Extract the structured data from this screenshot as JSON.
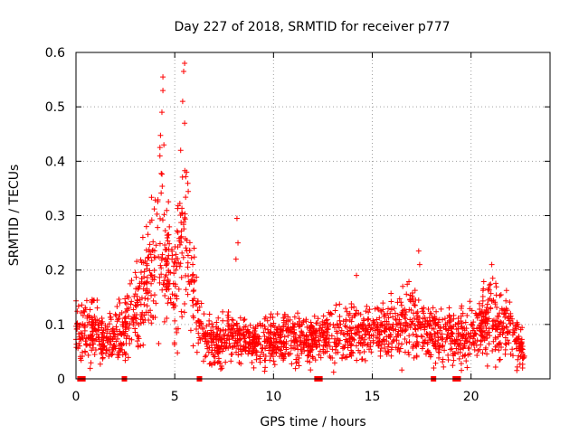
{
  "chart_data": {
    "type": "scatter",
    "title": "Day 227 of 2018, SRMTID for receiver p777",
    "xlabel": "GPS time / hours",
    "ylabel": "SRMTID / TECUs",
    "xlim": [
      0,
      24
    ],
    "ylim": [
      0,
      0.6
    ],
    "x_ticks": [
      0,
      5,
      10,
      15,
      20
    ],
    "y_ticks": [
      0,
      0.1,
      0.2,
      0.3,
      0.4,
      0.5,
      0.6
    ],
    "x_tick_labels": [
      "0",
      "5",
      "10",
      "15",
      "20"
    ],
    "y_tick_labels": [
      "0",
      "0.1",
      "0.2",
      "0.3",
      "0.4",
      "0.5",
      "0.6"
    ],
    "grid": true,
    "marker": "plus",
    "color": "#ff0000",
    "data_coverage": [
      0.0,
      22.7
    ],
    "series": [
      {
        "name": "SRMTID",
        "envelope": [
          {
            "x": 0.0,
            "y": 0.09
          },
          {
            "x": 0.5,
            "y": 0.1
          },
          {
            "x": 1.0,
            "y": 0.09
          },
          {
            "x": 1.5,
            "y": 0.07
          },
          {
            "x": 2.0,
            "y": 0.08
          },
          {
            "x": 2.5,
            "y": 0.09
          },
          {
            "x": 3.0,
            "y": 0.13
          },
          {
            "x": 3.5,
            "y": 0.17
          },
          {
            "x": 4.0,
            "y": 0.21
          },
          {
            "x": 4.3,
            "y": 0.27
          },
          {
            "x": 4.6,
            "y": 0.2
          },
          {
            "x": 5.0,
            "y": 0.17
          },
          {
            "x": 5.3,
            "y": 0.27
          },
          {
            "x": 5.7,
            "y": 0.2
          },
          {
            "x": 6.0,
            "y": 0.14
          },
          {
            "x": 6.5,
            "y": 0.08
          },
          {
            "x": 7.0,
            "y": 0.07
          },
          {
            "x": 8.0,
            "y": 0.075
          },
          {
            "x": 9.0,
            "y": 0.065
          },
          {
            "x": 10.0,
            "y": 0.075
          },
          {
            "x": 11.0,
            "y": 0.075
          },
          {
            "x": 12.0,
            "y": 0.07
          },
          {
            "x": 13.0,
            "y": 0.075
          },
          {
            "x": 14.0,
            "y": 0.085
          },
          {
            "x": 15.0,
            "y": 0.08
          },
          {
            "x": 16.0,
            "y": 0.1
          },
          {
            "x": 17.0,
            "y": 0.11
          },
          {
            "x": 18.0,
            "y": 0.08
          },
          {
            "x": 19.0,
            "y": 0.075
          },
          {
            "x": 20.0,
            "y": 0.08
          },
          {
            "x": 21.0,
            "y": 0.11
          },
          {
            "x": 22.0,
            "y": 0.09
          },
          {
            "x": 22.7,
            "y": 0.05
          }
        ],
        "peaks": [
          {
            "x": 4.4,
            "y": 0.555
          },
          {
            "x": 4.4,
            "y": 0.53
          },
          {
            "x": 4.35,
            "y": 0.49
          },
          {
            "x": 4.45,
            "y": 0.43
          },
          {
            "x": 5.5,
            "y": 0.58
          },
          {
            "x": 5.45,
            "y": 0.565
          },
          {
            "x": 5.4,
            "y": 0.51
          },
          {
            "x": 5.5,
            "y": 0.47
          },
          {
            "x": 5.3,
            "y": 0.42
          },
          {
            "x": 5.6,
            "y": 0.38
          },
          {
            "x": 8.15,
            "y": 0.295
          },
          {
            "x": 8.2,
            "y": 0.25
          },
          {
            "x": 8.1,
            "y": 0.22
          },
          {
            "x": 17.35,
            "y": 0.235
          },
          {
            "x": 17.4,
            "y": 0.21
          },
          {
            "x": 14.2,
            "y": 0.19
          },
          {
            "x": 21.05,
            "y": 0.21
          },
          {
            "x": 21.1,
            "y": 0.185
          }
        ]
      }
    ],
    "gap_markers_x": [
      0.2,
      0.35,
      2.45,
      6.25,
      12.2,
      12.35,
      18.1,
      19.2,
      19.35
    ]
  }
}
